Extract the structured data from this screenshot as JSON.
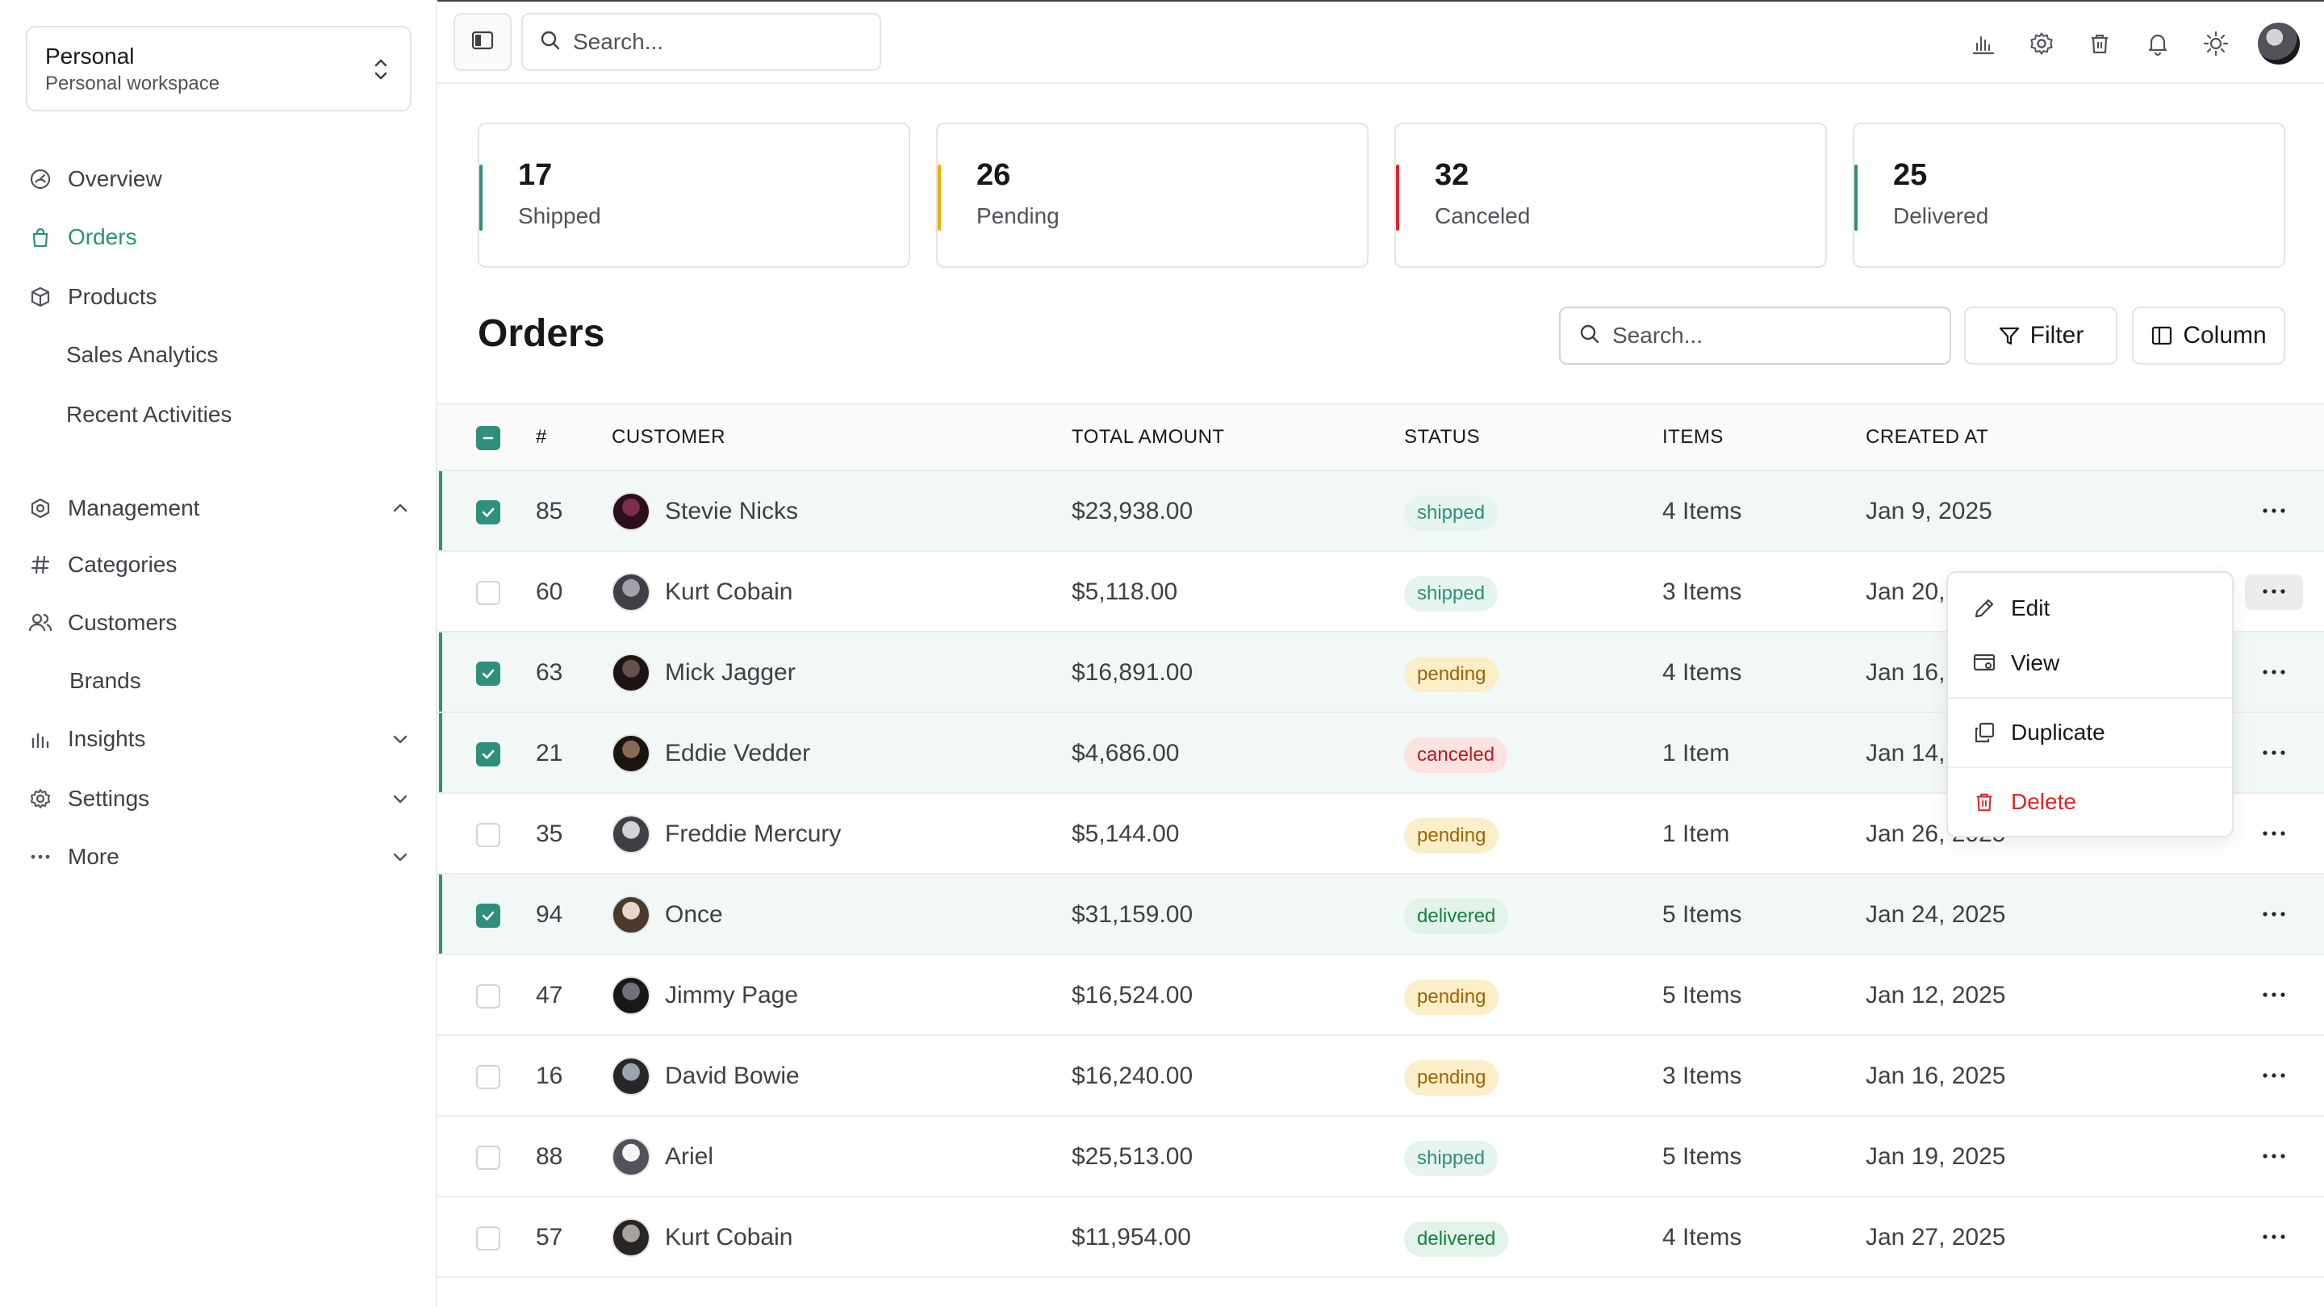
{
  "workspace": {
    "name": "Personal",
    "subtitle": "Personal workspace"
  },
  "sidebar": {
    "items": [
      {
        "label": "Overview",
        "icon": "gauge-icon"
      },
      {
        "label": "Orders",
        "icon": "shopping-bag-icon",
        "active": true
      },
      {
        "label": "Products",
        "icon": "package-icon"
      },
      {
        "label": "Sales Analytics"
      },
      {
        "label": "Recent Activities"
      },
      {
        "label": "Management",
        "icon": "hexagon-settings-icon",
        "expanded": true
      },
      {
        "label": "Categories",
        "icon": "hash-icon"
      },
      {
        "label": "Customers",
        "icon": "users-icon"
      },
      {
        "label": "Brands"
      },
      {
        "label": "Insights",
        "icon": "bar-chart-icon"
      },
      {
        "label": "Settings",
        "icon": "gear-icon"
      },
      {
        "label": "More",
        "icon": "ellipsis-icon"
      }
    ]
  },
  "topbar": {
    "search_placeholder": "Search..."
  },
  "stats": [
    {
      "value": "17",
      "label": "Shipped",
      "color": "#2f8f7c"
    },
    {
      "value": "26",
      "label": "Pending",
      "color": "#eab308"
    },
    {
      "value": "32",
      "label": "Canceled",
      "color": "#dc2626"
    },
    {
      "value": "25",
      "label": "Delivered",
      "color": "#2f8f7c"
    }
  ],
  "orders": {
    "title": "Orders",
    "search_placeholder": "Search...",
    "filter_label": "Filter",
    "column_label": "Column",
    "columns": [
      "#",
      "CUSTOMER",
      "TOTAL AMOUNT",
      "STATUS",
      "ITEMS",
      "CREATED AT"
    ],
    "rows": [
      {
        "id": "85",
        "customer": "Stevie Nicks",
        "amount": "$23,938.00",
        "status": "shipped",
        "items": "4 Items",
        "created": "Jan 9, 2025",
        "selected": true
      },
      {
        "id": "60",
        "customer": "Kurt Cobain",
        "amount": "$5,118.00",
        "status": "shipped",
        "items": "3 Items",
        "created": "Jan 20, 2025",
        "selected": false,
        "menu_open": true
      },
      {
        "id": "63",
        "customer": "Mick Jagger",
        "amount": "$16,891.00",
        "status": "pending",
        "items": "4 Items",
        "created": "Jan 16, 2025",
        "selected": true
      },
      {
        "id": "21",
        "customer": "Eddie Vedder",
        "amount": "$4,686.00",
        "status": "canceled",
        "items": "1 Item",
        "created": "Jan 14, 2025",
        "selected": true
      },
      {
        "id": "35",
        "customer": "Freddie Mercury",
        "amount": "$5,144.00",
        "status": "pending",
        "items": "1 Item",
        "created": "Jan 26, 2025",
        "selected": false
      },
      {
        "id": "94",
        "customer": "Once",
        "amount": "$31,159.00",
        "status": "delivered",
        "items": "5 Items",
        "created": "Jan 24, 2025",
        "selected": true
      },
      {
        "id": "47",
        "customer": "Jimmy Page",
        "amount": "$16,524.00",
        "status": "pending",
        "items": "5 Items",
        "created": "Jan 12, 2025",
        "selected": false
      },
      {
        "id": "16",
        "customer": "David Bowie",
        "amount": "$16,240.00",
        "status": "pending",
        "items": "3 Items",
        "created": "Jan 16, 2025",
        "selected": false
      },
      {
        "id": "88",
        "customer": "Ariel",
        "amount": "$25,513.00",
        "status": "shipped",
        "items": "5 Items",
        "created": "Jan 19, 2025",
        "selected": false
      },
      {
        "id": "57",
        "customer": "Kurt Cobain",
        "amount": "$11,954.00",
        "status": "delivered",
        "items": "4 Items",
        "created": "Jan 27, 2025",
        "selected": false
      }
    ]
  },
  "row_menu": {
    "edit": "Edit",
    "view": "View",
    "duplicate": "Duplicate",
    "delete": "Delete"
  }
}
